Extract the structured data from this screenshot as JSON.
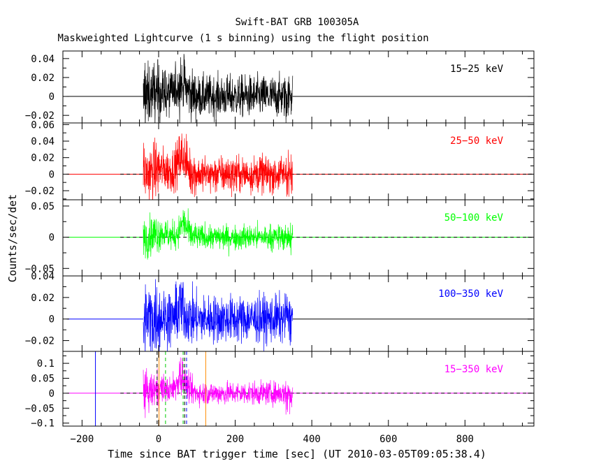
{
  "chart_data": {
    "type": "line",
    "title": "Swift-BAT GRB 100305A",
    "subtitle": "Maskweighted Lightcurve (1 s binning) using the flight position",
    "xlabel": "Time since BAT trigger time [sec] (UT 2010-03-05T09:05:38.4)",
    "ylabel": "Counts/sec/det",
    "xlim": [
      -250,
      980
    ],
    "xticks": [
      -200,
      0,
      200,
      400,
      600,
      800
    ],
    "xtick_labels": [
      "−200",
      "0",
      "200",
      "400",
      "600",
      "800"
    ],
    "data_range": [
      -40,
      350
    ],
    "background_range": [
      -240,
      975
    ],
    "panels": [
      {
        "name": "15−25 keV",
        "color": "#000000",
        "ylim": [
          -0.028,
          0.048
        ],
        "yticks": [
          -0.02,
          0,
          0.02,
          0.04
        ],
        "ytick_labels": [
          "−0.02",
          "0",
          "0.02",
          "0.04"
        ],
        "peak_amplitude": 0.047,
        "noise_amplitude": 0.02,
        "pulse": {
          "center": 60,
          "width": 20,
          "height": 0.012
        },
        "dashed_zero": false
      },
      {
        "name": "25−50 keV",
        "color": "#ff0000",
        "ylim": [
          -0.031,
          0.062
        ],
        "yticks": [
          -0.02,
          0,
          0.02,
          0.04,
          0.06
        ],
        "ytick_labels": [
          "−0.02",
          "0",
          "0.02",
          "0.04",
          "0.06"
        ],
        "peak_amplitude": 0.05,
        "noise_amplitude": 0.02,
        "pulse": {
          "center": 60,
          "width": 20,
          "height": 0.018
        },
        "dashed_zero": true
      },
      {
        "name": "50−100 keV",
        "color": "#00ff00",
        "ylim": [
          -0.062,
          0.06
        ],
        "yticks": [
          -0.05,
          0,
          0.05
        ],
        "ytick_labels": [
          "−0.05",
          "0",
          "0.05"
        ],
        "peak_amplitude": 0.05,
        "noise_amplitude": 0.018,
        "pulse": {
          "center": 65,
          "width": 15,
          "height": 0.02
        },
        "dashed_zero": true
      },
      {
        "name": "100−350 keV",
        "color": "#0000ff",
        "ylim": [
          -0.03,
          0.04
        ],
        "yticks": [
          -0.02,
          0,
          0.02,
          0.04
        ],
        "ytick_labels": [
          "−0.02",
          "0",
          "0.02",
          "0.04"
        ],
        "peak_amplitude": 0.035,
        "noise_amplitude": 0.02,
        "pulse": {
          "center": 60,
          "width": 20,
          "height": 0.006
        },
        "dashed_zero": false
      },
      {
        "name": "15−350 keV",
        "color": "#ff00ff",
        "ylim": [
          -0.11,
          0.14
        ],
        "yticks": [
          -0.1,
          -0.05,
          0,
          0.05,
          0.1
        ],
        "ytick_labels": [
          "−0.1",
          "−0.05",
          "0",
          "0.05",
          "0.1"
        ],
        "peak_amplitude": 0.12,
        "noise_amplitude": 0.035,
        "pulse": {
          "center": 60,
          "width": 20,
          "height": 0.045
        },
        "dashed_zero": true
      }
    ],
    "markers": [
      {
        "x": -165,
        "color": "#0000ff",
        "style": "solid"
      },
      {
        "x": -4,
        "color": "#000000",
        "style": "dashed"
      },
      {
        "x": 1,
        "color": "#ff8c00",
        "style": "solid"
      },
      {
        "x": 18,
        "color": "#00cc00",
        "style": "dashed"
      },
      {
        "x": 64,
        "color": "#00cc00",
        "style": "dashed"
      },
      {
        "x": 68,
        "color": "#000000",
        "style": "dashed"
      },
      {
        "x": 73,
        "color": "#0000ff",
        "style": "dashed"
      },
      {
        "x": 123,
        "color": "#ff8c00",
        "style": "solid"
      }
    ]
  }
}
